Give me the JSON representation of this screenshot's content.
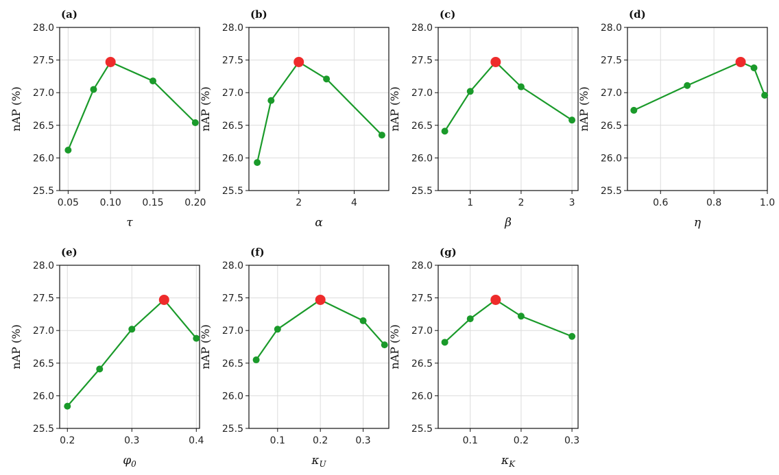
{
  "colors": {
    "line": "#1a9a2a",
    "highlight": "#ee2b2b"
  },
  "chart_data": [
    {
      "type": "line",
      "panel": "(a)",
      "ylabel": "nAP (%)",
      "xlabel": "τ",
      "ylim": [
        25.5,
        28.0
      ],
      "xlim": [
        0.04,
        0.205
      ],
      "xticks": [
        0.05,
        0.1,
        0.15,
        0.2
      ],
      "xtick_labels": [
        "0.05",
        "0.10",
        "0.15",
        "0.20"
      ],
      "yticks": [
        25.5,
        26.0,
        26.5,
        27.0,
        27.5,
        28.0
      ],
      "ytick_labels": [
        "25.5",
        "26.0",
        "26.5",
        "27.0",
        "27.5",
        "28.0"
      ],
      "x": [
        0.05,
        0.08,
        0.1,
        0.15,
        0.2
      ],
      "y": [
        26.12,
        27.05,
        27.47,
        27.18,
        26.54
      ],
      "highlight_index": 2,
      "grid": true
    },
    {
      "type": "line",
      "panel": "(b)",
      "ylabel": "nAP (%)",
      "xlabel": "α",
      "ylim": [
        25.5,
        28.0
      ],
      "xlim": [
        0.2,
        5.25
      ],
      "xticks": [
        2,
        4
      ],
      "xtick_labels": [
        "2",
        "4"
      ],
      "yticks": [
        25.5,
        26.0,
        26.5,
        27.0,
        27.5,
        28.0
      ],
      "ytick_labels": [
        "25.5",
        "26.0",
        "26.5",
        "27.0",
        "27.5",
        "28.0"
      ],
      "x": [
        0.5,
        1,
        2,
        3,
        5
      ],
      "y": [
        25.93,
        26.88,
        27.47,
        27.21,
        26.35
      ],
      "highlight_index": 2,
      "grid": true
    },
    {
      "type": "line",
      "panel": "(c)",
      "ylabel": "nAP (%)",
      "xlabel": "β",
      "ylim": [
        25.5,
        28.0
      ],
      "xlim": [
        0.37,
        3.12
      ],
      "xticks": [
        1,
        2,
        3
      ],
      "xtick_labels": [
        "1",
        "2",
        "3"
      ],
      "yticks": [
        25.5,
        26.0,
        26.5,
        27.0,
        27.5,
        28.0
      ],
      "ytick_labels": [
        "25.5",
        "26.0",
        "26.5",
        "27.0",
        "27.5",
        "28.0"
      ],
      "x": [
        0.5,
        1,
        1.5,
        2,
        3
      ],
      "y": [
        26.41,
        27.02,
        27.47,
        27.09,
        26.58
      ],
      "highlight_index": 2,
      "grid": true
    },
    {
      "type": "line",
      "panel": "(d)",
      "ylabel": "nAP (%)",
      "xlabel": "η",
      "ylim": [
        25.5,
        28.0
      ],
      "xlim": [
        0.476,
        1.0
      ],
      "xticks": [
        0.6,
        0.8,
        1.0
      ],
      "xtick_labels": [
        "0.6",
        "0.8",
        "1.0"
      ],
      "yticks": [
        25.5,
        26.0,
        26.5,
        27.0,
        27.5,
        28.0
      ],
      "ytick_labels": [
        "25.5",
        "26.0",
        "26.5",
        "27.0",
        "27.5",
        "28.0"
      ],
      "x": [
        0.5,
        0.7,
        0.9,
        0.95,
        0.99
      ],
      "y": [
        26.73,
        27.11,
        27.47,
        27.38,
        26.96
      ],
      "highlight_index": 2,
      "grid": true
    },
    {
      "type": "line",
      "panel": "(e)",
      "ylabel": "nAP (%)",
      "xlabel": "φ0",
      "ylim": [
        25.5,
        28.0
      ],
      "xlim": [
        0.188,
        0.405
      ],
      "xticks": [
        0.2,
        0.3,
        0.4
      ],
      "xtick_labels": [
        "0.2",
        "0.3",
        "0.4"
      ],
      "yticks": [
        25.5,
        26.0,
        26.5,
        27.0,
        27.5,
        28.0
      ],
      "ytick_labels": [
        "25.5",
        "26.0",
        "26.5",
        "27.0",
        "27.5",
        "28.0"
      ],
      "x": [
        0.2,
        0.25,
        0.3,
        0.35,
        0.4
      ],
      "y": [
        25.84,
        26.41,
        27.02,
        27.47,
        26.88
      ],
      "highlight_index": 3,
      "grid": true
    },
    {
      "type": "line",
      "panel": "(f)",
      "ylabel": "nAP (%)",
      "xlabel": "κU",
      "ylim": [
        25.5,
        28.0
      ],
      "xlim": [
        0.033,
        0.36
      ],
      "xticks": [
        0.1,
        0.2,
        0.3
      ],
      "xtick_labels": [
        "0.1",
        "0.2",
        "0.3"
      ],
      "yticks": [
        25.5,
        26.0,
        26.5,
        27.0,
        27.5,
        28.0
      ],
      "ytick_labels": [
        "25.5",
        "26.0",
        "26.5",
        "27.0",
        "27.5",
        "28.0"
      ],
      "x": [
        0.05,
        0.1,
        0.2,
        0.3,
        0.35
      ],
      "y": [
        26.55,
        27.02,
        27.47,
        27.15,
        26.78
      ],
      "highlight_index": 2,
      "grid": true
    },
    {
      "type": "line",
      "panel": "(g)",
      "ylabel": "nAP (%)",
      "xlabel": "κK",
      "ylim": [
        25.5,
        28.0
      ],
      "xlim": [
        0.037,
        0.312
      ],
      "xticks": [
        0.1,
        0.2,
        0.3
      ],
      "xtick_labels": [
        "0.1",
        "0.2",
        "0.3"
      ],
      "yticks": [
        25.5,
        26.0,
        26.5,
        27.0,
        27.5,
        28.0
      ],
      "ytick_labels": [
        "25.5",
        "26.0",
        "26.5",
        "27.0",
        "27.5",
        "28.0"
      ],
      "x": [
        0.05,
        0.1,
        0.15,
        0.2,
        0.3
      ],
      "y": [
        26.82,
        27.18,
        27.47,
        27.22,
        26.91
      ],
      "highlight_index": 2,
      "grid": true
    }
  ]
}
